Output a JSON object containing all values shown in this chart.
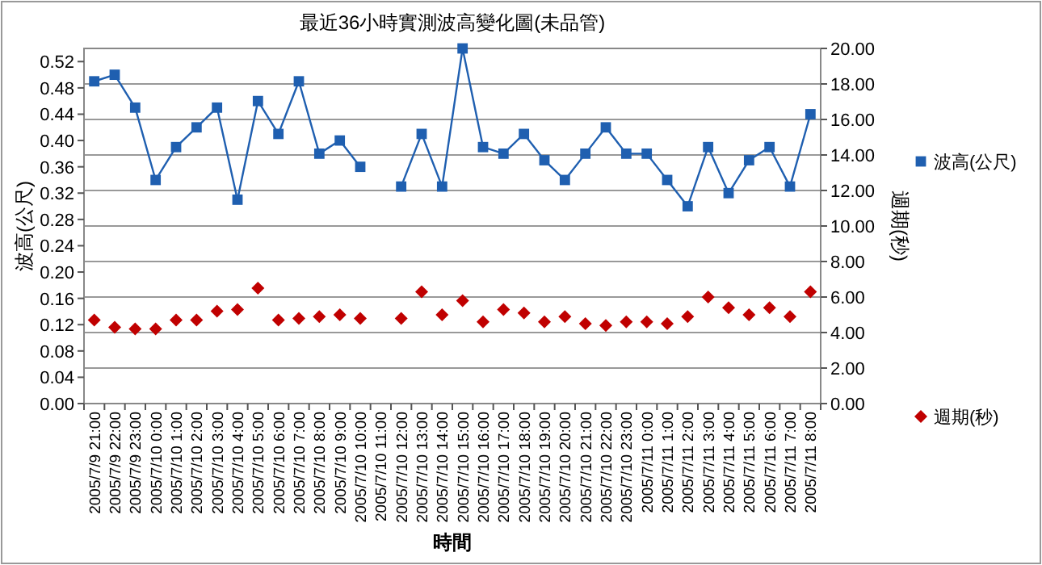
{
  "chart_data": {
    "type": "line",
    "title": "最近36小時實測波高變化圖(未品管)",
    "xlabel": "時間",
    "ylabel": "波高(公尺)",
    "y2label": "週期(秒)",
    "categories": [
      "2005/7/9 21:00",
      "2005/7/9 22:00",
      "2005/7/9 23:00",
      "2005/7/10 0:00",
      "2005/7/10 1:00",
      "2005/7/10 2:00",
      "2005/7/10 3:00",
      "2005/7/10 4:00",
      "2005/7/10 5:00",
      "2005/7/10 6:00",
      "2005/7/10 7:00",
      "2005/7/10 8:00",
      "2005/7/10 9:00",
      "2005/7/10 10:00",
      "2005/7/10 11:00",
      "2005/7/10 12:00",
      "2005/7/10 13:00",
      "2005/7/10 14:00",
      "2005/7/10 15:00",
      "2005/7/10 16:00",
      "2005/7/10 17:00",
      "2005/7/10 18:00",
      "2005/7/10 19:00",
      "2005/7/10 20:00",
      "2005/7/10 21:00",
      "2005/7/10 22:00",
      "2005/7/10 23:00",
      "2005/7/11 0:00",
      "2005/7/11 1:00",
      "2005/7/11 2:00",
      "2005/7/11 3:00",
      "2005/7/11 4:00",
      "2005/7/11 5:00",
      "2005/7/11 6:00",
      "2005/7/11 7:00",
      "2005/7/11 8:00"
    ],
    "series": [
      {
        "name": "波高(公尺)",
        "type": "line",
        "color": "#1f5fb0",
        "marker": "square",
        "values": [
          0.49,
          0.5,
          0.45,
          0.34,
          0.39,
          0.42,
          0.45,
          0.31,
          0.46,
          0.41,
          0.49,
          0.38,
          0.4,
          0.36,
          null,
          0.33,
          0.41,
          0.33,
          0.54,
          0.39,
          0.38,
          0.41,
          0.37,
          0.34,
          0.38,
          0.42,
          0.38,
          0.38,
          0.34,
          0.3,
          0.39,
          0.32,
          0.37,
          0.39,
          0.33,
          0.44
        ]
      },
      {
        "name": "週期(秒)",
        "type": "scatter",
        "axis": "y2",
        "color": "#c00000",
        "marker": "diamond",
        "values": [
          4.7,
          4.3,
          4.2,
          4.2,
          4.7,
          4.7,
          5.2,
          5.3,
          6.5,
          4.7,
          4.8,
          4.9,
          5.0,
          4.8,
          null,
          4.8,
          6.3,
          5.0,
          5.8,
          4.6,
          5.3,
          5.1,
          4.6,
          4.9,
          4.5,
          4.4,
          4.6,
          4.6,
          4.5,
          4.9,
          6.0,
          5.4,
          5.0,
          5.4,
          4.9,
          6.3
        ]
      }
    ],
    "ylim": [
      0,
      0.54
    ],
    "yticks": [
      {
        "value": 0,
        "label": "0.00"
      },
      {
        "value": 0.04,
        "label": "0.04"
      },
      {
        "value": 0.08,
        "label": "0.08"
      },
      {
        "value": 0.12,
        "label": "0.12"
      },
      {
        "value": 0.16,
        "label": "0.16"
      },
      {
        "value": 0.2,
        "label": "0.20"
      },
      {
        "value": 0.24,
        "label": "0.24"
      },
      {
        "value": 0.28,
        "label": "0.28"
      },
      {
        "value": 0.32,
        "label": "0.32"
      },
      {
        "value": 0.36,
        "label": "0.36"
      },
      {
        "value": 0.4,
        "label": "0.40"
      },
      {
        "value": 0.44,
        "label": "0.44"
      },
      {
        "value": 0.48,
        "label": "0.48"
      },
      {
        "value": 0.52,
        "label": "0.52"
      }
    ],
    "y2lim": [
      0,
      20
    ],
    "y2ticks": [
      {
        "value": 0,
        "label": "0.00"
      },
      {
        "value": 2,
        "label": "2.00"
      },
      {
        "value": 4,
        "label": "4.00"
      },
      {
        "value": 6,
        "label": "6.00"
      },
      {
        "value": 8,
        "label": "8.00"
      },
      {
        "value": 10,
        "label": "10.00"
      },
      {
        "value": 12,
        "label": "12.00"
      },
      {
        "value": 14,
        "label": "14.00"
      },
      {
        "value": 16,
        "label": "16.00"
      },
      {
        "value": 18,
        "label": "18.00"
      },
      {
        "value": 20,
        "label": "20.00"
      }
    ],
    "grid": "y2",
    "legend": "right"
  }
}
